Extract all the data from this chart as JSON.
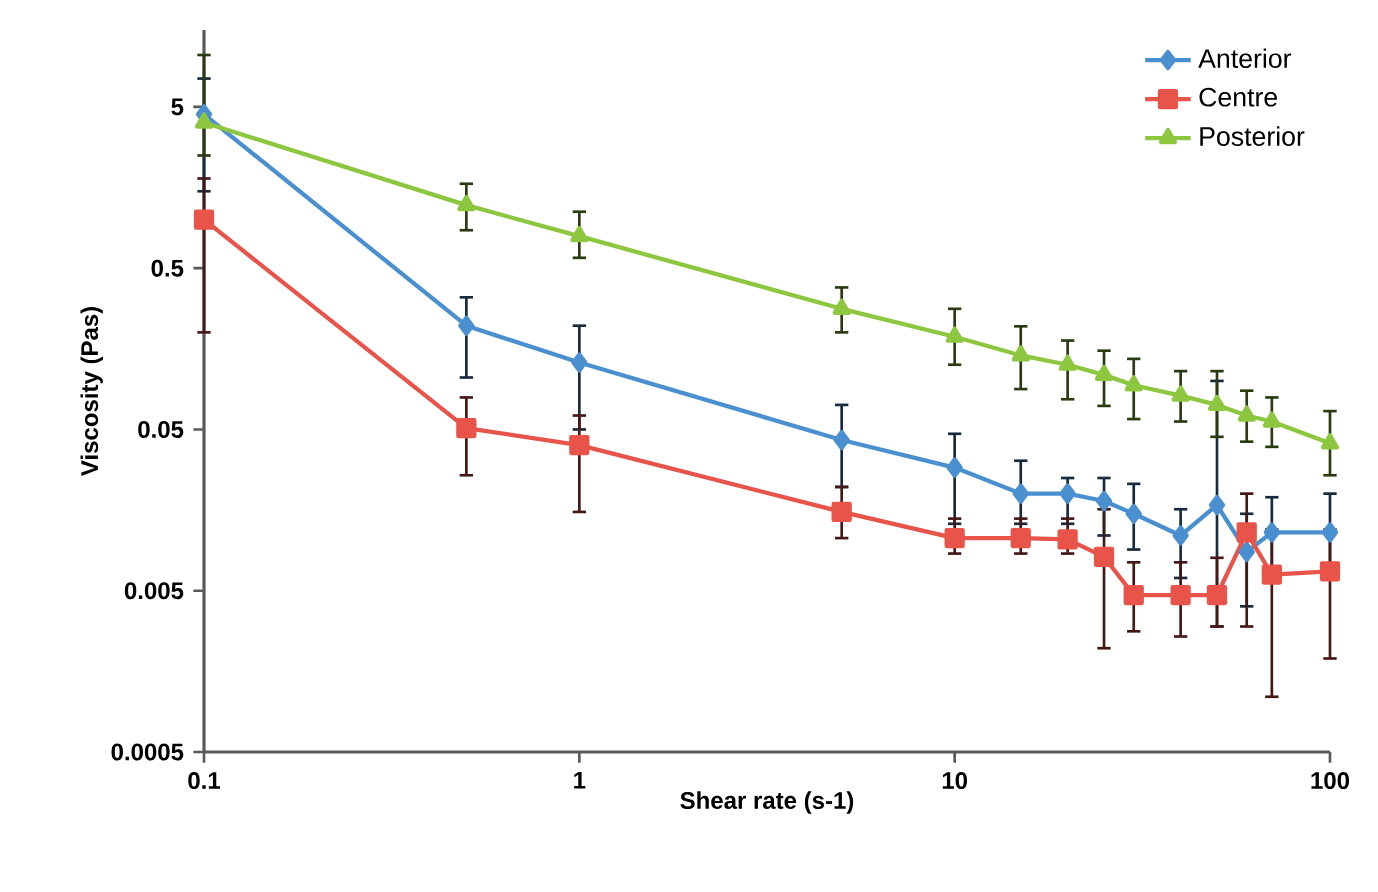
{
  "chart_data": {
    "type": "line",
    "xlabel": "Shear rate (s-1)",
    "ylabel": "Viscosity (Pas)",
    "x": [
      0.1,
      0.5,
      1,
      5,
      10,
      15,
      20,
      25,
      30,
      40,
      50,
      60,
      70,
      100
    ],
    "log": "xy",
    "xlim": [
      0.1,
      100
    ],
    "xticks": [
      0.1,
      1,
      10,
      100
    ],
    "ylim": [
      0.0005,
      15
    ],
    "yticks": [
      0.0005,
      0.005,
      0.05,
      0.5,
      5
    ],
    "grid": false,
    "legend": "top right",
    "line_style": "solid",
    "series": [
      {
        "name": "Anterior",
        "color": "#4a90d0",
        "marker": "diamond",
        "values": [
          4.5,
          0.22,
          0.13,
          0.043,
          0.029,
          0.02,
          0.02,
          0.018,
          0.015,
          0.011,
          0.017,
          0.0087,
          0.0115,
          0.0115
        ],
        "errors": [
          [
            1.5,
            7.5
          ],
          [
            0.105,
            0.33
          ],
          [
            0.05,
            0.22
          ],
          [
            0.022,
            0.071
          ],
          [
            0.013,
            0.047
          ],
          [
            0.013,
            0.032
          ],
          [
            0.013,
            0.025
          ],
          [
            0.011,
            0.025
          ],
          [
            0.009,
            0.023
          ],
          [
            0.006,
            0.016
          ],
          [
            0.003,
            0.1
          ],
          [
            0.004,
            0.015
          ],
          [
            0.007,
            0.019
          ],
          [
            0.006,
            0.02
          ]
        ]
      },
      {
        "name": "Centre",
        "color": "#e8534a",
        "marker": "square",
        "values": [
          1.0,
          0.051,
          0.04,
          0.0154,
          0.0106,
          0.0106,
          0.0104,
          0.0081,
          0.0047,
          0.0047,
          0.0047,
          0.0115,
          0.0063,
          0.0066
        ],
        "errors": [
          [
            0.2,
            1.8
          ],
          [
            0.026,
            0.079
          ],
          [
            0.0154,
            0.061
          ],
          [
            0.0106,
            0.022
          ],
          [
            0.0085,
            0.014
          ],
          [
            0.0085,
            0.014
          ],
          [
            0.0085,
            0.014
          ],
          [
            0.0022,
            0.016
          ],
          [
            0.0028,
            0.0075
          ],
          [
            0.0026,
            0.0075
          ],
          [
            0.003,
            0.008
          ],
          [
            0.003,
            0.02
          ],
          [
            0.0011,
            0.012
          ],
          [
            0.0019,
            0.012
          ]
        ]
      },
      {
        "name": "Posterior",
        "color": "#8dc63f",
        "marker": "triangle",
        "values": [
          4.0,
          1.23,
          0.79,
          0.28,
          0.188,
          0.144,
          0.126,
          0.109,
          0.094,
          0.081,
          0.071,
          0.061,
          0.056,
          0.041
        ],
        "errors": [
          [
            2.5,
            10.5
          ],
          [
            0.86,
            1.67
          ],
          [
            0.58,
            1.12
          ],
          [
            0.2,
            0.38
          ],
          [
            0.126,
            0.28
          ],
          [
            0.089,
            0.218
          ],
          [
            0.077,
            0.178
          ],
          [
            0.07,
            0.154
          ],
          [
            0.058,
            0.137
          ],
          [
            0.056,
            0.115
          ],
          [
            0.045,
            0.115
          ],
          [
            0.042,
            0.087
          ],
          [
            0.039,
            0.079
          ],
          [
            0.026,
            0.065
          ]
        ]
      }
    ]
  }
}
